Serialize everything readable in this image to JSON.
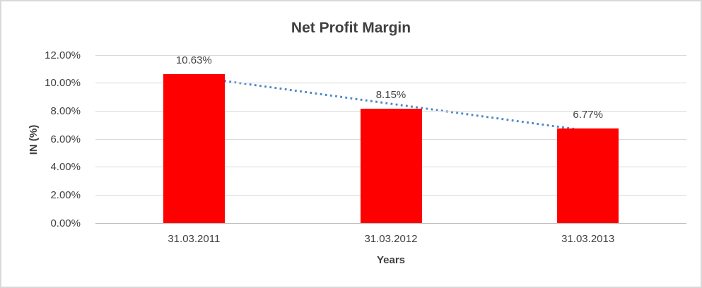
{
  "chart_data": {
    "type": "bar",
    "title": "Net Profit Margin",
    "xlabel": "Years",
    "ylabel": "IN (%)",
    "categories": [
      "31.03.2011",
      "31.03.2012",
      "31.03.2013"
    ],
    "values": [
      10.63,
      8.15,
      6.77
    ],
    "data_labels": [
      "10.63%",
      "8.15%",
      "6.77%"
    ],
    "ylim": [
      0,
      12
    ],
    "yticks": {
      "values": [
        0,
        2,
        4,
        6,
        8,
        10,
        12
      ],
      "labels": [
        "0.00%",
        "2.00%",
        "4.00%",
        "6.00%",
        "8.00%",
        "10.00%",
        "12.00%"
      ]
    },
    "grid": true,
    "legend": "none",
    "trendline": {
      "type": "linear",
      "style": "dotted",
      "start_value": 10.45,
      "end_value": 6.59
    },
    "colors": {
      "bar": "#ff0000",
      "trendline": "#4e87c7",
      "gridline": "#d9d9d9",
      "axis_line": "#bfbfbf",
      "text": "#404040",
      "frame_border": "#d9d9d9",
      "background": "#ffffff"
    }
  }
}
